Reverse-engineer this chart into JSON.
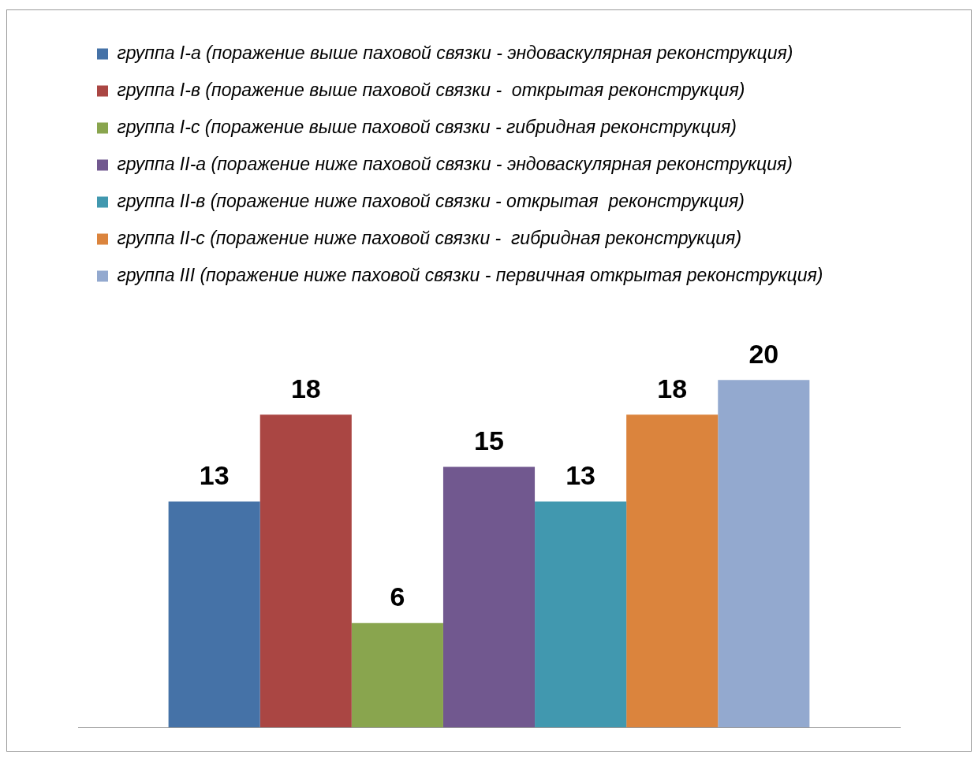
{
  "chart_data": {
    "type": "bar",
    "categories": [
      null
    ],
    "series": [
      {
        "name": "группа I-а (поражение выше паховой связки - эндоваскулярная реконструкция)",
        "color": "#4572a7",
        "values": [
          13
        ]
      },
      {
        "name": "группа I-в (поражение выше паховой связки -  открытая реконструкция)",
        "color": "#aa4643",
        "values": [
          18
        ]
      },
      {
        "name": "группа I-с (поражение выше паховой связки - гибридная реконструкция)",
        "color": "#89a54e",
        "values": [
          6
        ]
      },
      {
        "name": "группа II-а (поражение ниже паховой связки - эндоваскулярная реконструкция)",
        "color": "#71588f",
        "values": [
          15
        ]
      },
      {
        "name": "группа II-в (поражение ниже паховой связки - открытая  реконструкция)",
        "color": "#4198af",
        "values": [
          13
        ]
      },
      {
        "name": "группа II-с (поражение ниже паховой связки -  гибридная реконструкция)",
        "color": "#db843d",
        "values": [
          18
        ]
      },
      {
        "name": "группа III (поражение ниже паховой связки - первичная открытая реконструкция)",
        "color": "#93a9cf",
        "values": [
          20
        ]
      }
    ],
    "data_labels": true,
    "grid": false,
    "legend": "top",
    "tick_labels": false
  }
}
